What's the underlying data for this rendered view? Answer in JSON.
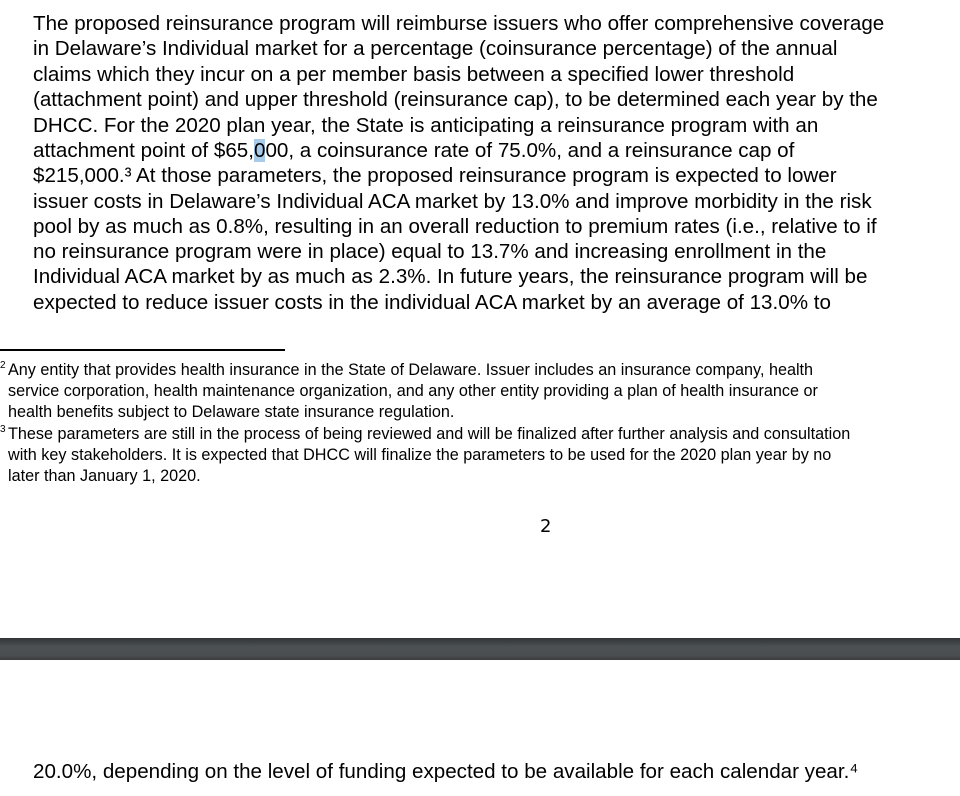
{
  "page1": {
    "body_lines": [
      "The proposed reinsurance program will reimburse issuers who offer comprehensive coverage",
      "in Delaware’s Individual market for a percentage (coinsurance percentage) of the annual",
      "claims which they incur on a per member basis between a specified lower threshold",
      "(attachment point) and upper threshold (reinsurance cap), to be determined each year by the",
      "DHCC. For the 2020 plan year, the State is anticipating a reinsurance program with an",
      "$215,000.³ At those parameters, the proposed reinsurance program is expected to lower",
      "issuer costs in Delaware’s Individual ACA market by 13.0% and improve morbidity in the risk",
      "pool by as much as 0.8%, resulting in an overall reduction to premium rates (i.e., relative to if",
      "no reinsurance program were in place) equal to 13.7% and increasing enrollment in the",
      "Individual ACA market by as much as 2.3%. In future years, the reinsurance program will be",
      "expected to reduce issuer costs in the individual ACA market by an average of 13.0% to"
    ],
    "line6": {
      "before": "attachment point of $65,",
      "selected": "0",
      "after": "00, a coinsurance rate of 75.0%, and a reinsurance cap of"
    },
    "footnotes": [
      {
        "marker": "2",
        "lines": [
          "Any entity that provides health insurance in the State of Delaware. Issuer includes an insurance company, health",
          "service corporation, health maintenance organization, and any other entity providing a plan of health insurance or",
          "health benefits subject to Delaware state insurance regulation."
        ]
      },
      {
        "marker": "3",
        "lines": [
          "These parameters are still in the process of being reviewed and will be finalized after further analysis and consultation",
          "with key stakeholders. It is expected that DHCC will finalize the parameters to be used for the 2020 plan year by no",
          "later than January 1, 2020."
        ]
      }
    ],
    "page_number": "2"
  },
  "page2": {
    "first_line": "20.0%, depending on the level of funding expected to be available for each calendar year.⁴"
  },
  "colors": {
    "selection": "#a9cbea",
    "page_gap": "#4a4e50"
  }
}
